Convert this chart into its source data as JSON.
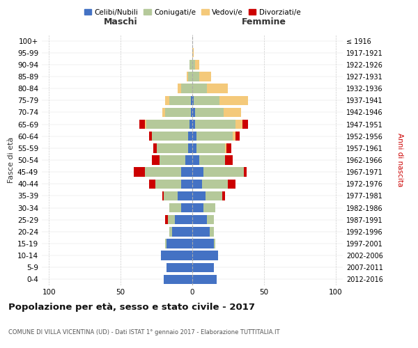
{
  "age_groups": [
    "0-4",
    "5-9",
    "10-14",
    "15-19",
    "20-24",
    "25-29",
    "30-34",
    "35-39",
    "40-44",
    "45-49",
    "50-54",
    "55-59",
    "60-64",
    "65-69",
    "70-74",
    "75-79",
    "80-84",
    "85-89",
    "90-94",
    "95-99",
    "100+"
  ],
  "birth_years": [
    "2012-2016",
    "2007-2011",
    "2002-2006",
    "1997-2001",
    "1992-1996",
    "1987-1991",
    "1982-1986",
    "1977-1981",
    "1972-1976",
    "1967-1971",
    "1962-1966",
    "1957-1961",
    "1952-1956",
    "1947-1951",
    "1942-1946",
    "1937-1941",
    "1932-1936",
    "1927-1931",
    "1922-1926",
    "1917-1921",
    "≤ 1916"
  ],
  "male": {
    "celibe": [
      20,
      18,
      22,
      18,
      14,
      12,
      8,
      10,
      8,
      8,
      5,
      3,
      3,
      2,
      1,
      1,
      0,
      0,
      0,
      0,
      0
    ],
    "coniugato": [
      0,
      0,
      0,
      1,
      2,
      5,
      8,
      10,
      18,
      25,
      18,
      22,
      25,
      30,
      18,
      15,
      8,
      3,
      2,
      0,
      0
    ],
    "vedovo": [
      0,
      0,
      0,
      0,
      0,
      0,
      0,
      0,
      0,
      0,
      0,
      0,
      0,
      1,
      2,
      3,
      2,
      1,
      0,
      0,
      0
    ],
    "divorziato": [
      0,
      0,
      0,
      0,
      0,
      2,
      0,
      1,
      4,
      8,
      5,
      2,
      2,
      4,
      0,
      0,
      0,
      0,
      0,
      0,
      0
    ]
  },
  "female": {
    "nubile": [
      17,
      15,
      18,
      15,
      12,
      10,
      8,
      9,
      7,
      8,
      5,
      3,
      3,
      2,
      2,
      1,
      0,
      0,
      0,
      0,
      0
    ],
    "coniugata": [
      0,
      0,
      0,
      1,
      3,
      5,
      8,
      12,
      18,
      28,
      18,
      20,
      25,
      28,
      20,
      18,
      10,
      5,
      2,
      0,
      0
    ],
    "vedova": [
      0,
      0,
      0,
      0,
      0,
      0,
      0,
      0,
      0,
      0,
      0,
      1,
      2,
      5,
      12,
      20,
      15,
      8,
      3,
      1,
      0
    ],
    "divorziata": [
      0,
      0,
      0,
      0,
      0,
      0,
      0,
      2,
      5,
      2,
      5,
      3,
      3,
      4,
      0,
      0,
      0,
      0,
      0,
      0,
      0
    ]
  },
  "colors": {
    "celibe": "#4472c4",
    "coniugato": "#b5c99a",
    "vedovo": "#f4c97a",
    "divorziato": "#cc0000"
  },
  "xlim": [
    -105,
    105
  ],
  "xticks": [
    -100,
    -50,
    0,
    50,
    100
  ],
  "xticklabels": [
    "100",
    "50",
    "0",
    "50",
    "100"
  ],
  "title": "Popolazione per età, sesso e stato civile - 2017",
  "subtitle": "COMUNE DI VILLA VICENTINA (UD) - Dati ISTAT 1° gennaio 2017 - Elaborazione TUTTITALIA.IT",
  "ylabel": "Fasce di età",
  "ylabel_right": "Anni di nascita",
  "label_maschi": "Maschi",
  "label_femmine": "Femmine",
  "legend_labels": [
    "Celibi/Nubili",
    "Coniugati/e",
    "Vedovi/e",
    "Divorziati/e"
  ]
}
